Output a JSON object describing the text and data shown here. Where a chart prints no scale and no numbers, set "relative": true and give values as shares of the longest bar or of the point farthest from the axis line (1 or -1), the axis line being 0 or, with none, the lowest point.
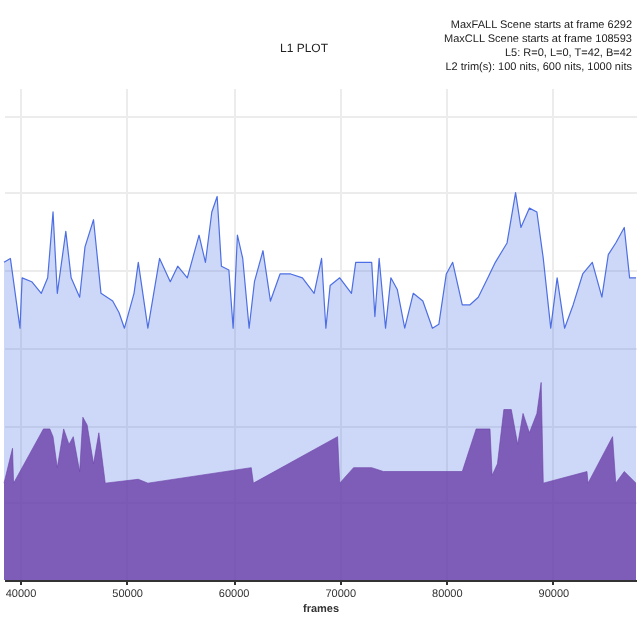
{
  "chart_data": {
    "type": "area",
    "title": "L1 PLOT",
    "xlabel": "frames",
    "annotations": [
      "MaxFALL Scene starts at frame 6292",
      "MaxCLL Scene starts at frame 108593",
      "L5: R=0, L=0, T=42, B=42",
      "L2 trim(s): 100 nits, 600 nits, 1000 nits"
    ],
    "relative": true,
    "grid": true,
    "legend": false,
    "xlim": [
      38500,
      97800
    ],
    "xticks": [
      40000,
      50000,
      60000,
      70000,
      80000,
      90000
    ],
    "series": [
      {
        "color": "#4d6fe3",
        "x": [
          38500,
          39100,
          40000,
          40200,
          41100,
          42000,
          42600,
          43100,
          43500,
          44300,
          44800,
          45600,
          46100,
          46900,
          47600,
          48700,
          49300,
          49800,
          50700,
          51100,
          52000,
          53100,
          54100,
          54800,
          55700,
          56800,
          57400,
          58000,
          58500,
          58900,
          59600,
          60000,
          60400,
          60900,
          61500,
          62000,
          62800,
          63500,
          64400,
          65400,
          66500,
          67600,
          68300,
          68700,
          69100,
          70000,
          71100,
          71500,
          73000,
          73300,
          73700,
          74300,
          74800,
          75400,
          76100,
          76900,
          77800,
          78700,
          79300,
          80000,
          80600,
          81500,
          82200,
          83000,
          83900,
          84600,
          85700,
          86500,
          87000,
          87800,
          88500,
          89100,
          89800,
          90400,
          91100,
          91900,
          92800,
          93700,
          94600,
          95200,
          95900,
          96700,
          97200,
          97800
        ],
        "values": [
          0.82,
          0.83,
          0.65,
          0.78,
          0.77,
          0.74,
          0.78,
          0.95,
          0.74,
          0.9,
          0.78,
          0.73,
          0.86,
          0.93,
          0.74,
          0.72,
          0.69,
          0.65,
          0.74,
          0.82,
          0.65,
          0.83,
          0.77,
          0.81,
          0.78,
          0.89,
          0.82,
          0.95,
          0.99,
          0.81,
          0.8,
          0.65,
          0.89,
          0.83,
          0.65,
          0.77,
          0.85,
          0.72,
          0.79,
          0.79,
          0.78,
          0.74,
          0.83,
          0.65,
          0.76,
          0.78,
          0.74,
          0.82,
          0.82,
          0.68,
          0.83,
          0.65,
          0.78,
          0.75,
          0.65,
          0.74,
          0.72,
          0.65,
          0.66,
          0.79,
          0.82,
          0.71,
          0.71,
          0.73,
          0.78,
          0.82,
          0.87,
          1,
          0.91,
          0.96,
          0.95,
          0.83,
          0.65,
          0.78,
          0.65,
          0.71,
          0.79,
          0.82,
          0.73,
          0.84,
          0.87,
          0.91,
          0.78,
          0.78
        ]
      },
      {
        "color": "#6a3fa8",
        "x": [
          38500,
          39300,
          39400,
          42200,
          42800,
          43100,
          43500,
          44100,
          44600,
          45000,
          45600,
          45900,
          46300,
          46900,
          47400,
          48000,
          51100,
          52000,
          61700,
          61900,
          69800,
          70000,
          71300,
          73000,
          74100,
          81500,
          82800,
          84100,
          84300,
          84800,
          85400,
          86100,
          86700,
          87200,
          87800,
          88500,
          88900,
          89100,
          93200,
          93300,
          95600,
          95900,
          96700,
          97800
        ],
        "values": [
          0.25,
          0.34,
          0.25,
          0.39,
          0.39,
          0.37,
          0.29,
          0.39,
          0.35,
          0.37,
          0.28,
          0.42,
          0.4,
          0.3,
          0.38,
          0.25,
          0.26,
          0.25,
          0.29,
          0.25,
          0.37,
          0.25,
          0.29,
          0.29,
          0.28,
          0.28,
          0.39,
          0.39,
          0.27,
          0.3,
          0.44,
          0.44,
          0.35,
          0.43,
          0.38,
          0.43,
          0.51,
          0.25,
          0.28,
          0.25,
          0.37,
          0.25,
          0.28,
          0.25
        ]
      }
    ]
  }
}
